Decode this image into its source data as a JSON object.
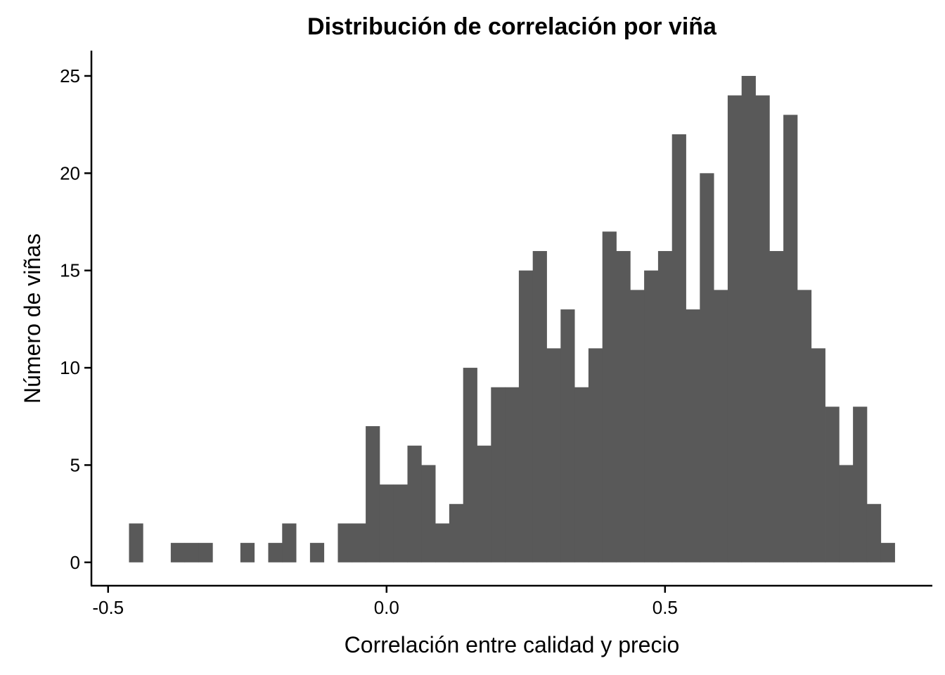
{
  "chart_data": {
    "type": "bar",
    "title": "Distribución de correlación por viña",
    "xlabel": "Correlación entre calidad y precio",
    "ylabel": "Número de viñas",
    "xlim": [
      -0.53,
      0.98
    ],
    "ylim": [
      -1.2,
      26.3
    ],
    "x_ticks": [
      -0.5,
      0.0,
      0.5
    ],
    "x_tick_labels": [
      "-0.5",
      "0.0",
      "0.5"
    ],
    "y_ticks": [
      0,
      5,
      10,
      15,
      20,
      25
    ],
    "y_tick_labels": [
      "0",
      "5",
      "10",
      "15",
      "20",
      "25"
    ],
    "bin_width": 0.025,
    "bar_color": "#595959",
    "grid": false,
    "bins": [
      {
        "x0": -0.4625,
        "count": 2
      },
      {
        "x0": -0.4375,
        "count": 0
      },
      {
        "x0": -0.4125,
        "count": 0
      },
      {
        "x0": -0.3875,
        "count": 1
      },
      {
        "x0": -0.3625,
        "count": 1
      },
      {
        "x0": -0.3375,
        "count": 1
      },
      {
        "x0": -0.3125,
        "count": 0
      },
      {
        "x0": -0.2875,
        "count": 0
      },
      {
        "x0": -0.2625,
        "count": 1
      },
      {
        "x0": -0.2375,
        "count": 0
      },
      {
        "x0": -0.2125,
        "count": 1
      },
      {
        "x0": -0.1875,
        "count": 2
      },
      {
        "x0": -0.1625,
        "count": 0
      },
      {
        "x0": -0.1375,
        "count": 1
      },
      {
        "x0": -0.1125,
        "count": 0
      },
      {
        "x0": -0.0875,
        "count": 2
      },
      {
        "x0": -0.0625,
        "count": 2
      },
      {
        "x0": -0.0375,
        "count": 7
      },
      {
        "x0": -0.0125,
        "count": 4
      },
      {
        "x0": 0.0125,
        "count": 4
      },
      {
        "x0": 0.0375,
        "count": 6
      },
      {
        "x0": 0.0625,
        "count": 5
      },
      {
        "x0": 0.0875,
        "count": 2
      },
      {
        "x0": 0.1125,
        "count": 3
      },
      {
        "x0": 0.1375,
        "count": 10
      },
      {
        "x0": 0.1625,
        "count": 6
      },
      {
        "x0": 0.1875,
        "count": 9
      },
      {
        "x0": 0.2125,
        "count": 9
      },
      {
        "x0": 0.2375,
        "count": 15
      },
      {
        "x0": 0.2625,
        "count": 16
      },
      {
        "x0": 0.2875,
        "count": 11
      },
      {
        "x0": 0.3125,
        "count": 13
      },
      {
        "x0": 0.3375,
        "count": 9
      },
      {
        "x0": 0.3625,
        "count": 11
      },
      {
        "x0": 0.3875,
        "count": 17
      },
      {
        "x0": 0.4125,
        "count": 16
      },
      {
        "x0": 0.4375,
        "count": 14
      },
      {
        "x0": 0.4625,
        "count": 15
      },
      {
        "x0": 0.4875,
        "count": 16
      },
      {
        "x0": 0.5125,
        "count": 22
      },
      {
        "x0": 0.5375,
        "count": 13
      },
      {
        "x0": 0.5625,
        "count": 20
      },
      {
        "x0": 0.5875,
        "count": 14
      },
      {
        "x0": 0.6125,
        "count": 24
      },
      {
        "x0": 0.6375,
        "count": 25
      },
      {
        "x0": 0.6625,
        "count": 24
      },
      {
        "x0": 0.6875,
        "count": 16
      },
      {
        "x0": 0.7125,
        "count": 23
      },
      {
        "x0": 0.7375,
        "count": 14
      },
      {
        "x0": 0.7625,
        "count": 11
      },
      {
        "x0": 0.7875,
        "count": 8
      },
      {
        "x0": 0.8125,
        "count": 5
      },
      {
        "x0": 0.8375,
        "count": 8
      },
      {
        "x0": 0.8625,
        "count": 3
      },
      {
        "x0": 0.8875,
        "count": 1
      }
    ]
  }
}
